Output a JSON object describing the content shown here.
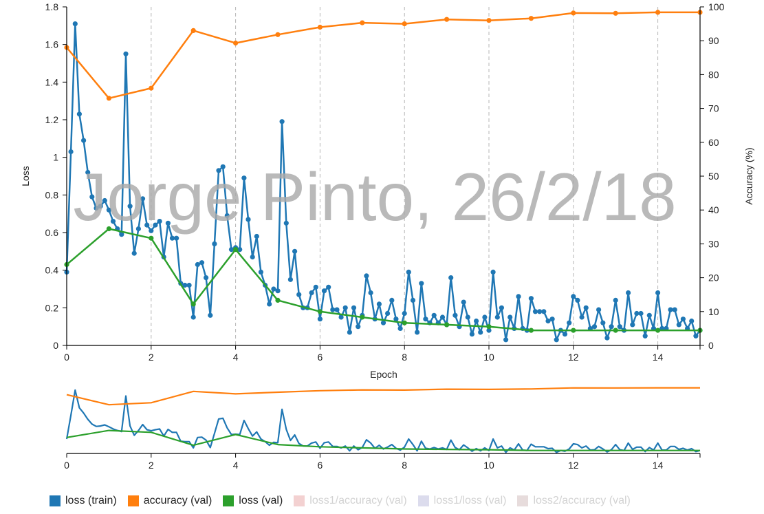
{
  "chart_data": {
    "type": "line",
    "xlabel": "Epoch",
    "ylabel_left": "Loss",
    "ylabel_right": "Accuracy (%)",
    "watermark": "Jorge Pinto, 26/2/18",
    "xlim": [
      0,
      15
    ],
    "ylim_left": [
      0,
      1.8
    ],
    "ylim_right": [
      0,
      100
    ],
    "x_ticks": [
      0,
      2,
      4,
      6,
      8,
      10,
      12,
      14
    ],
    "y_ticks_left": [
      0,
      0.2,
      0.4,
      0.6,
      0.8,
      1,
      1.2,
      1.4,
      1.6,
      1.8
    ],
    "y_ticks_right": [
      0,
      10,
      20,
      30,
      40,
      50,
      60,
      70,
      80,
      90,
      100
    ],
    "grid": "vertical-dashed",
    "legend_position": "bottom",
    "series": [
      {
        "name": "loss (train)",
        "axis": "left",
        "color": "#1f77b4",
        "points": [
          [
            0,
            0.39
          ],
          [
            0.1,
            1.03
          ],
          [
            0.2,
            1.71
          ],
          [
            0.3,
            1.23
          ],
          [
            0.4,
            1.09
          ],
          [
            0.5,
            0.92
          ],
          [
            0.6,
            0.79
          ],
          [
            0.7,
            0.73
          ],
          [
            0.8,
            0.74
          ],
          [
            0.9,
            0.77
          ],
          [
            1.0,
            0.72
          ],
          [
            1.1,
            0.66
          ],
          [
            1.2,
            0.62
          ],
          [
            1.3,
            0.59
          ],
          [
            1.4,
            1.55
          ],
          [
            1.5,
            0.74
          ],
          [
            1.6,
            0.49
          ],
          [
            1.7,
            0.62
          ],
          [
            1.8,
            0.78
          ],
          [
            1.9,
            0.64
          ],
          [
            2.0,
            0.61
          ],
          [
            2.1,
            0.64
          ],
          [
            2.2,
            0.66
          ],
          [
            2.3,
            0.47
          ],
          [
            2.4,
            0.65
          ],
          [
            2.5,
            0.57
          ],
          [
            2.6,
            0.57
          ],
          [
            2.7,
            0.33
          ],
          [
            2.8,
            0.32
          ],
          [
            2.9,
            0.32
          ],
          [
            3.0,
            0.15
          ],
          [
            3.1,
            0.43
          ],
          [
            3.2,
            0.44
          ],
          [
            3.3,
            0.36
          ],
          [
            3.4,
            0.16
          ],
          [
            3.5,
            0.54
          ],
          [
            3.6,
            0.93
          ],
          [
            3.7,
            0.95
          ],
          [
            3.8,
            0.69
          ],
          [
            3.9,
            0.51
          ],
          [
            4.0,
            0.52
          ],
          [
            4.1,
            0.51
          ],
          [
            4.2,
            0.89
          ],
          [
            4.3,
            0.67
          ],
          [
            4.4,
            0.47
          ],
          [
            4.5,
            0.58
          ],
          [
            4.6,
            0.39
          ],
          [
            4.7,
            0.32
          ],
          [
            4.8,
            0.22
          ],
          [
            4.9,
            0.3
          ],
          [
            5.0,
            0.29
          ],
          [
            5.1,
            1.19
          ],
          [
            5.2,
            0.65
          ],
          [
            5.3,
            0.35
          ],
          [
            5.4,
            0.5
          ],
          [
            5.5,
            0.27
          ],
          [
            5.6,
            0.2
          ],
          [
            5.7,
            0.2
          ],
          [
            5.8,
            0.28
          ],
          [
            5.9,
            0.31
          ],
          [
            6.0,
            0.14
          ],
          [
            6.1,
            0.29
          ],
          [
            6.2,
            0.31
          ],
          [
            6.3,
            0.19
          ],
          [
            6.4,
            0.19
          ],
          [
            6.5,
            0.15
          ],
          [
            6.6,
            0.2
          ],
          [
            6.7,
            0.07
          ],
          [
            6.8,
            0.2
          ],
          [
            6.9,
            0.1
          ],
          [
            7.0,
            0.16
          ],
          [
            7.1,
            0.37
          ],
          [
            7.2,
            0.28
          ],
          [
            7.3,
            0.14
          ],
          [
            7.4,
            0.22
          ],
          [
            7.5,
            0.12
          ],
          [
            7.6,
            0.17
          ],
          [
            7.7,
            0.24
          ],
          [
            7.8,
            0.14
          ],
          [
            7.9,
            0.09
          ],
          [
            8.0,
            0.17
          ],
          [
            8.1,
            0.39
          ],
          [
            8.2,
            0.24
          ],
          [
            8.3,
            0.07
          ],
          [
            8.4,
            0.33
          ],
          [
            8.5,
            0.14
          ],
          [
            8.6,
            0.12
          ],
          [
            8.7,
            0.16
          ],
          [
            8.8,
            0.12
          ],
          [
            8.9,
            0.15
          ],
          [
            9.0,
            0.11
          ],
          [
            9.1,
            0.36
          ],
          [
            9.2,
            0.16
          ],
          [
            9.3,
            0.1
          ],
          [
            9.4,
            0.23
          ],
          [
            9.5,
            0.15
          ],
          [
            9.6,
            0.06
          ],
          [
            9.7,
            0.13
          ],
          [
            9.8,
            0.07
          ],
          [
            9.9,
            0.15
          ],
          [
            10.0,
            0.08
          ],
          [
            10.1,
            0.39
          ],
          [
            10.2,
            0.15
          ],
          [
            10.3,
            0.2
          ],
          [
            10.4,
            0.03
          ],
          [
            10.5,
            0.15
          ],
          [
            10.6,
            0.09
          ],
          [
            10.7,
            0.26
          ],
          [
            10.8,
            0.09
          ],
          [
            10.9,
            0.08
          ],
          [
            11.0,
            0.25
          ],
          [
            11.1,
            0.18
          ],
          [
            11.2,
            0.18
          ],
          [
            11.3,
            0.18
          ],
          [
            11.4,
            0.13
          ],
          [
            11.5,
            0.14
          ],
          [
            11.6,
            0.03
          ],
          [
            11.7,
            0.08
          ],
          [
            11.8,
            0.06
          ],
          [
            11.9,
            0.12
          ],
          [
            12.0,
            0.26
          ],
          [
            12.1,
            0.24
          ],
          [
            12.2,
            0.15
          ],
          [
            12.3,
            0.2
          ],
          [
            12.4,
            0.09
          ],
          [
            12.5,
            0.1
          ],
          [
            12.6,
            0.19
          ],
          [
            12.7,
            0.12
          ],
          [
            12.8,
            0.04
          ],
          [
            12.9,
            0.1
          ],
          [
            13.0,
            0.24
          ],
          [
            13.1,
            0.1
          ],
          [
            13.2,
            0.08
          ],
          [
            13.3,
            0.28
          ],
          [
            13.4,
            0.11
          ],
          [
            13.5,
            0.17
          ],
          [
            13.6,
            0.17
          ],
          [
            13.7,
            0.05
          ],
          [
            13.8,
            0.16
          ],
          [
            13.9,
            0.09
          ],
          [
            14.0,
            0.28
          ],
          [
            14.1,
            0.09
          ],
          [
            14.2,
            0.09
          ],
          [
            14.3,
            0.19
          ],
          [
            14.4,
            0.19
          ],
          [
            14.5,
            0.11
          ],
          [
            14.6,
            0.14
          ],
          [
            14.7,
            0.09
          ],
          [
            14.8,
            0.13
          ],
          [
            14.9,
            0.05
          ],
          [
            15.0,
            0.08
          ]
        ]
      },
      {
        "name": "accuracy (val)",
        "axis": "right",
        "color": "#ff7f0e",
        "points": [
          [
            0,
            88
          ],
          [
            1,
            73
          ],
          [
            2,
            76
          ],
          [
            3,
            93
          ],
          [
            4,
            89.3
          ],
          [
            5,
            91.8
          ],
          [
            6,
            94
          ],
          [
            7,
            95.3
          ],
          [
            8,
            95
          ],
          [
            9,
            96.3
          ],
          [
            10,
            96
          ],
          [
            11,
            96.6
          ],
          [
            12,
            98.2
          ],
          [
            13,
            98.1
          ],
          [
            14,
            98.4
          ],
          [
            15,
            98.4
          ]
        ]
      },
      {
        "name": "loss (val)",
        "axis": "left",
        "color": "#2ca02c",
        "points": [
          [
            0,
            0.43
          ],
          [
            1,
            0.62
          ],
          [
            2,
            0.57
          ],
          [
            3,
            0.22
          ],
          [
            4,
            0.51
          ],
          [
            5,
            0.24
          ],
          [
            6,
            0.18
          ],
          [
            7,
            0.15
          ],
          [
            8,
            0.12
          ],
          [
            9,
            0.11
          ],
          [
            10,
            0.1
          ],
          [
            11,
            0.08
          ],
          [
            12,
            0.08
          ],
          [
            13,
            0.08
          ],
          [
            14,
            0.08
          ],
          [
            15,
            0.08
          ]
        ]
      }
    ],
    "inactive_series": [
      {
        "name": "loss1/accuracy (val)",
        "color": "#f3d1d1"
      },
      {
        "name": "loss1/loss (val)",
        "color": "#dcdced"
      },
      {
        "name": "loss2/accuracy (val)",
        "color": "#e7dcdc"
      }
    ]
  }
}
